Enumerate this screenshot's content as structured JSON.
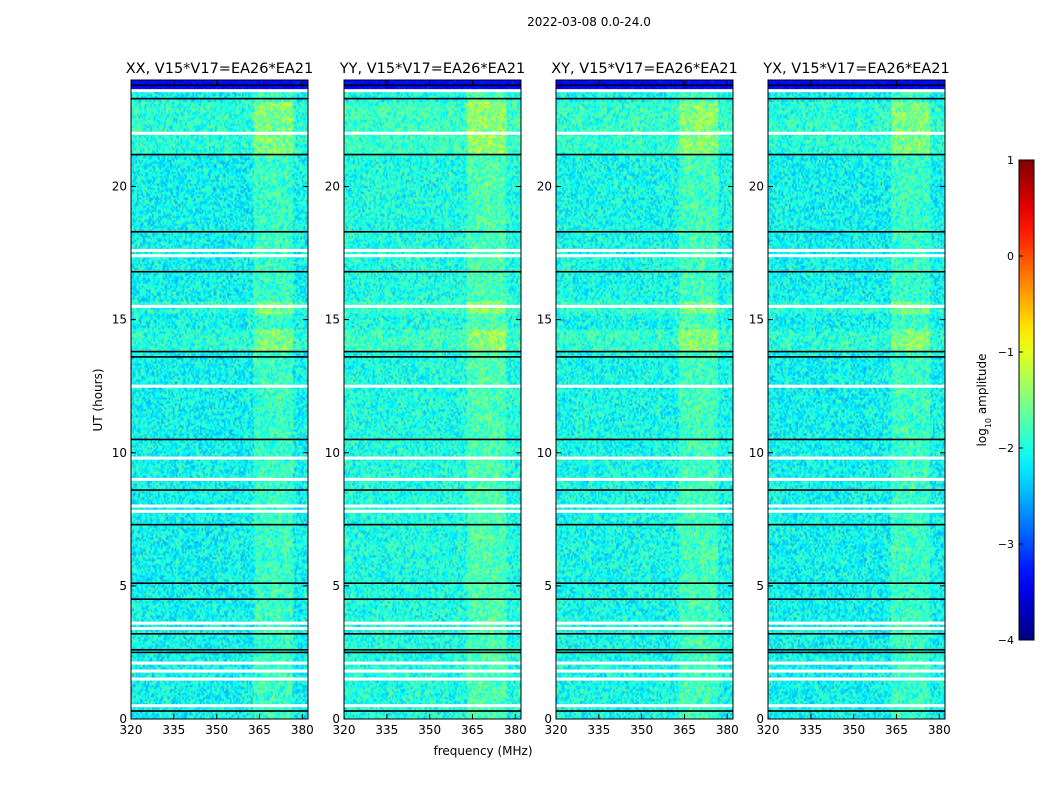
{
  "figure": {
    "suptitle": "2022-03-08 0.0-24.0",
    "xlabel": "frequency (MHz)",
    "ylabel": "UT (hours)"
  },
  "chart_data": {
    "type": "heatmap",
    "title": "2022-03-08 0.0-24.0",
    "xlabel": "frequency (MHz)",
    "ylabel": "UT (hours)",
    "xlim": [
      320,
      382
    ],
    "ylim": [
      0,
      24
    ],
    "x_ticks": [
      320,
      335,
      350,
      365,
      380
    ],
    "y_ticks": [
      0,
      5,
      10,
      15,
      20
    ],
    "panels": [
      {
        "title": "XX, V15*V17=EA26*EA21",
        "base_level": -2.1
      },
      {
        "title": "YY, V15*V17=EA26*EA21",
        "base_level": -2.0
      },
      {
        "title": "XY, V15*V17=EA26*EA21",
        "base_level": -2.05
      },
      {
        "title": "YX, V15*V17=EA26*EA21",
        "base_level": -2.1
      }
    ],
    "rfi_band_mhz": [
      363,
      377
    ],
    "bright_time_ranges_hours": [
      [
        13.8,
        14.6
      ],
      [
        15.2,
        15.7
      ],
      [
        21.2,
        23.2
      ]
    ],
    "flagged_white_hours": [
      0.5,
      1.5,
      1.8,
      2.1,
      3.4,
      3.6,
      7.8,
      8.0,
      9.0,
      9.8,
      12.5,
      15.5,
      17.4,
      17.6,
      22.0,
      23.6
    ],
    "dark_rows_hours": [
      0.3,
      2.5,
      2.6,
      3.2,
      4.5,
      5.1,
      7.3,
      8.6,
      10.5,
      13.6,
      13.8,
      16.8,
      18.3,
      21.2,
      23.3,
      23.8
    ],
    "colorbar": {
      "label": "log10 amplitude",
      "range": [
        -4,
        1
      ],
      "ticks": [
        -4,
        -3,
        -2,
        -1,
        0,
        1
      ]
    }
  }
}
